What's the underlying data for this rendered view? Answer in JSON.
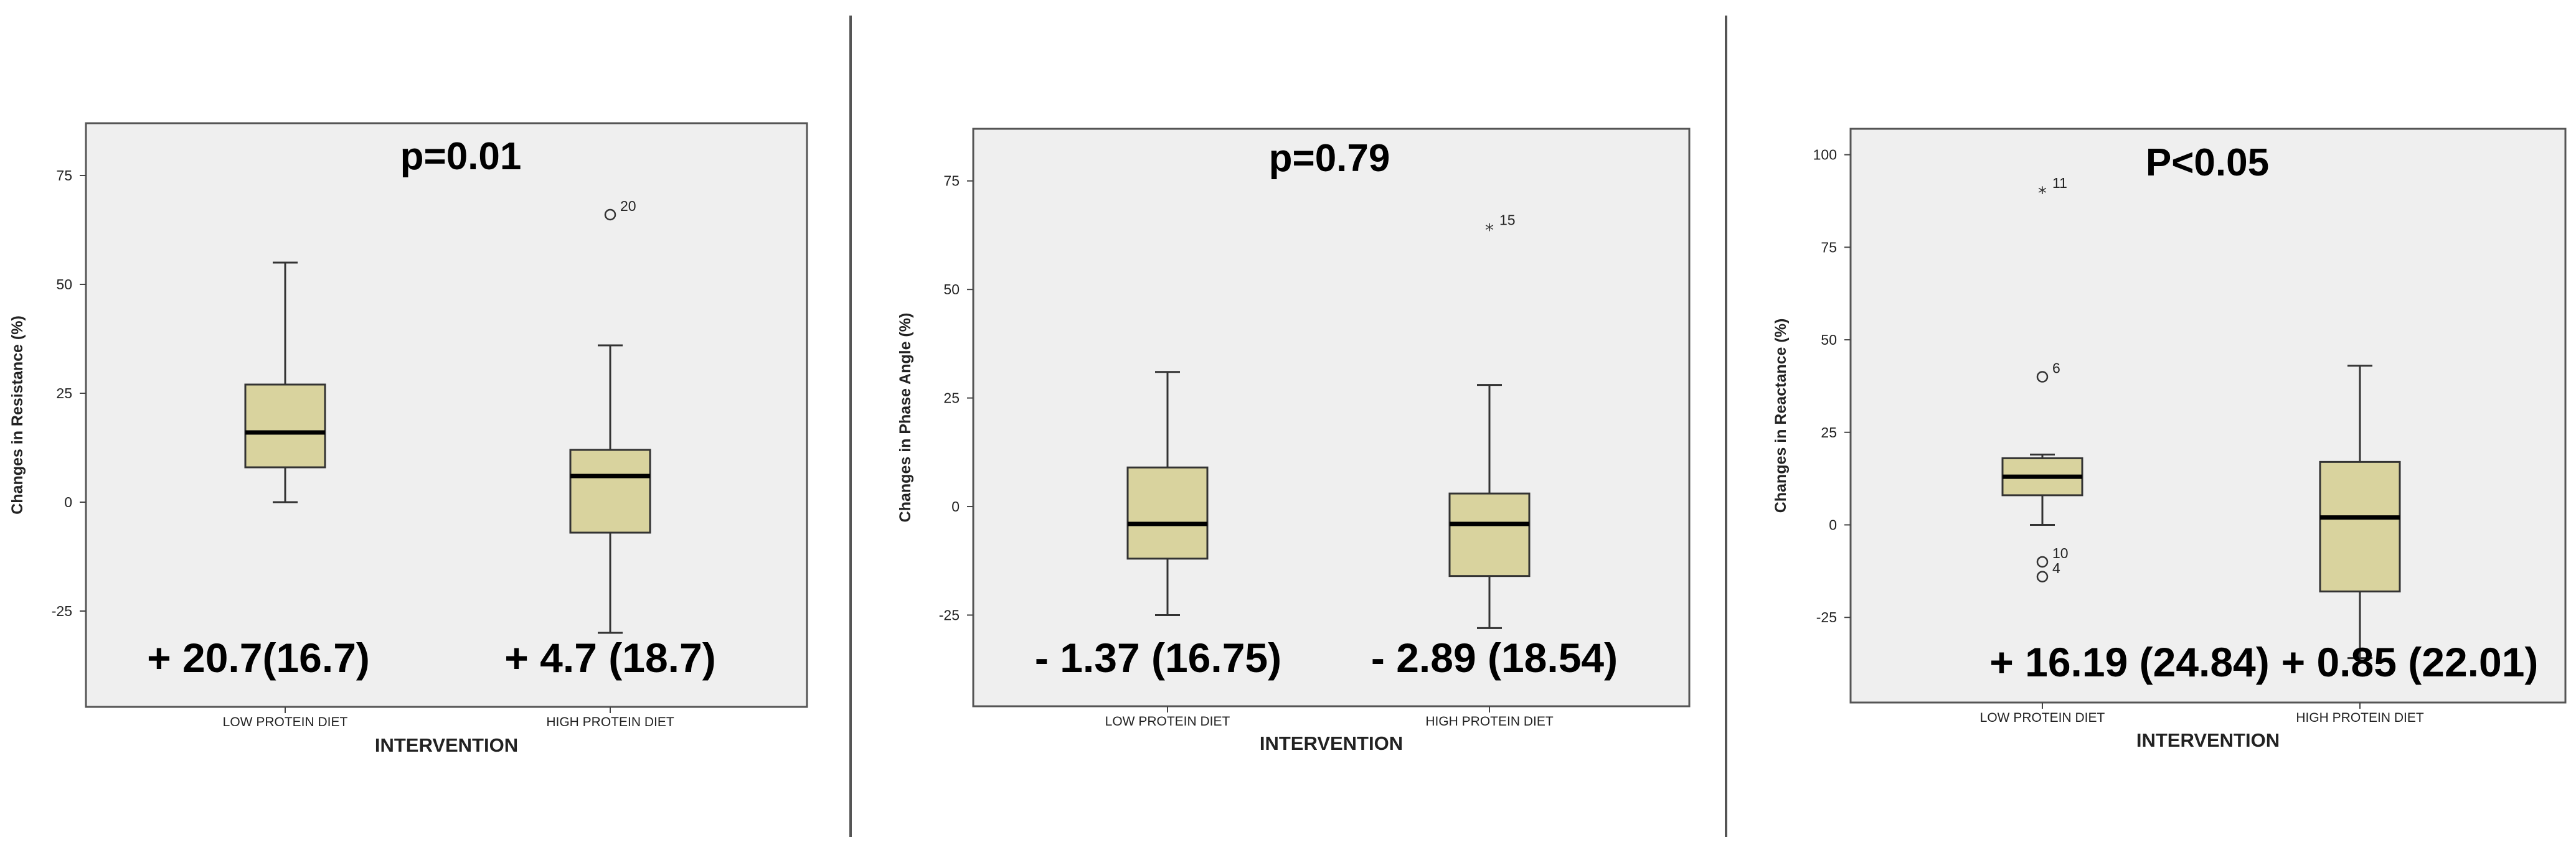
{
  "chart_data": [
    {
      "type": "box",
      "panel": "resistance",
      "ylabel": "Changes in Resistance (%)",
      "xlabel": "INTERVENTION",
      "categories": [
        "LOW PROTEIN DIET",
        "HIGH PROTEIN DIET"
      ],
      "yticks": [
        -25,
        0,
        25,
        50,
        75
      ],
      "ylim": [
        -47,
        87
      ],
      "boxes": [
        {
          "whisker_low": 0,
          "q1": 8,
          "median": 16,
          "q3": 27,
          "whisker_high": 55,
          "outliers": []
        },
        {
          "whisker_low": -30,
          "q1": -7,
          "median": 6,
          "q3": 12,
          "whisker_high": 36,
          "outliers": [
            {
              "value": 66,
              "marker": "circle",
              "label": "20"
            }
          ]
        }
      ],
      "annotation": "p=0.01",
      "stats": [
        "+ 20.7(16.7)",
        "+ 4.7 (18.7)"
      ]
    },
    {
      "type": "box",
      "panel": "phase-angle",
      "ylabel": "Changes in Phase Angle (%)",
      "xlabel": "INTERVENTION",
      "categories": [
        "LOW PROTEIN DIET",
        "HIGH PROTEIN DIET"
      ],
      "yticks": [
        -25,
        0,
        25,
        50,
        75
      ],
      "ylim": [
        -46,
        87
      ],
      "boxes": [
        {
          "whisker_low": -25,
          "q1": -12,
          "median": -4,
          "q3": 9,
          "whisker_high": 31,
          "outliers": []
        },
        {
          "whisker_low": -28,
          "q1": -16,
          "median": -4,
          "q3": 3,
          "whisker_high": 28,
          "outliers": [
            {
              "value": 64,
              "marker": "star",
              "label": "15"
            }
          ]
        }
      ],
      "annotation": "p=0.79",
      "stats": [
        "- 1.37 (16.75)",
        "- 2.89 (18.54)"
      ]
    },
    {
      "type": "box",
      "panel": "reactance",
      "ylabel": "Changes in Reactance (%)",
      "xlabel": "INTERVENTION",
      "categories": [
        "LOW PROTEIN DIET",
        "HIGH PROTEIN DIET"
      ],
      "yticks": [
        -25,
        0,
        25,
        50,
        75,
        100
      ],
      "ylim": [
        -48,
        107
      ],
      "boxes": [
        {
          "whisker_low": 0,
          "q1": 8,
          "median": 13,
          "q3": 18,
          "whisker_high": 19,
          "outliers": [
            {
              "value": 90,
              "marker": "star",
              "label": "11"
            },
            {
              "value": 40,
              "marker": "circle",
              "label": "6"
            },
            {
              "value": -10,
              "marker": "circle",
              "label": "10"
            },
            {
              "value": -14,
              "marker": "circle",
              "label": "4"
            }
          ]
        },
        {
          "whisker_low": -36,
          "q1": -18,
          "median": 2,
          "q3": 17,
          "whisker_high": 43,
          "outliers": []
        }
      ],
      "annotation": "P<0.05",
      "stats": [
        "+ 16.19 (24.84)",
        "+ 0.85 (22.01)"
      ]
    }
  ],
  "colors": {
    "plot_background": "#efefef",
    "box_fill": "#d9d39e",
    "box_stroke": "#333333",
    "median": "#000000",
    "divider": "#555555"
  }
}
